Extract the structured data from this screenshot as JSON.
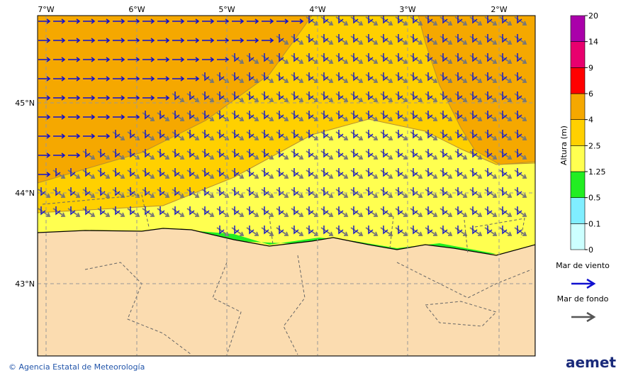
{
  "map": {
    "lon_labels": [
      "7°W",
      "6°W",
      "5°W",
      "4°W",
      "3°W",
      "2°W"
    ],
    "lat_labels": [
      "45°N",
      "44°N",
      "43°N"
    ],
    "colorbar": {
      "title": "Altura (m)",
      "levels": [
        0,
        0.1,
        0.5,
        1.25,
        2.5,
        4,
        6,
        9,
        14,
        20
      ],
      "colors": [
        "#ccffff",
        "#80eeff",
        "#22ee22",
        "#ffff50",
        "#ffd000",
        "#f5a800",
        "#ff0000",
        "#e8006e",
        "#aa00aa"
      ]
    },
    "legend": [
      {
        "label": "Mar de viento",
        "color": "#1010d0"
      },
      {
        "label": "Mar de fondo",
        "color": "#555555"
      }
    ]
  },
  "footer": {
    "credit": "© Agencia Estatal de Meteorología",
    "logo": "aemet"
  }
}
